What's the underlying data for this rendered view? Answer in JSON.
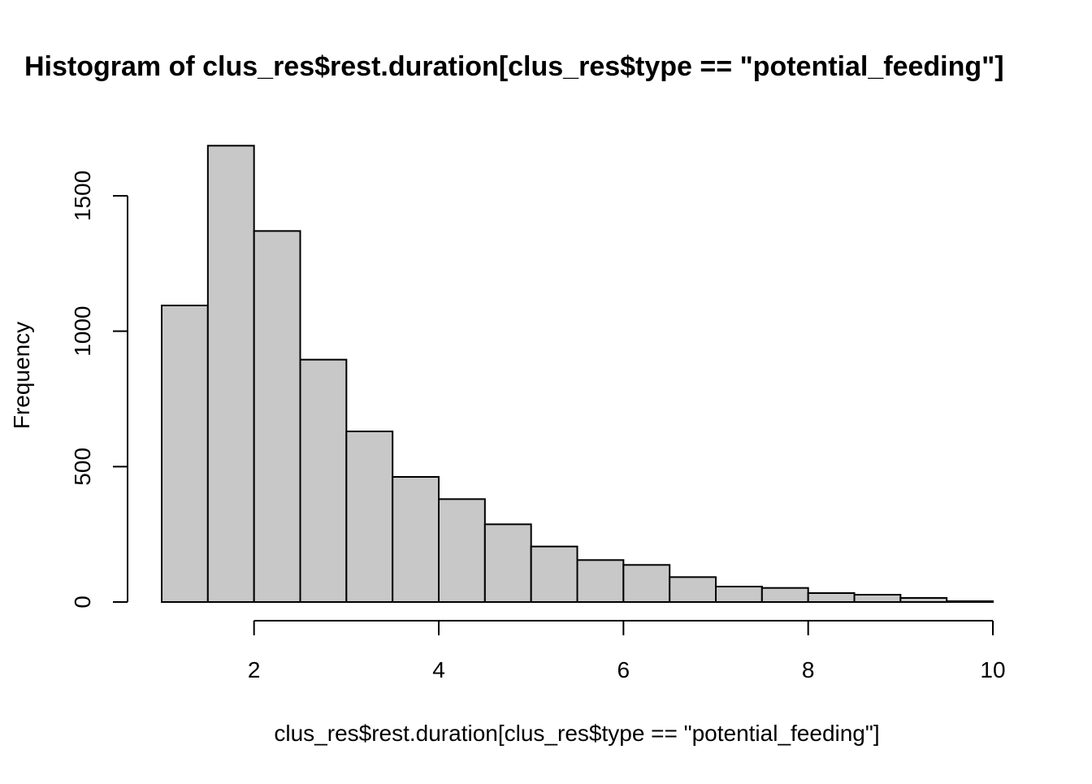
{
  "chart_data": {
    "type": "bar",
    "subtype": "histogram",
    "title": "Histogram of clus_res$rest.duration[clus_res$type == \"potential_feeding\"]",
    "xlabel": "clus_res$rest.duration[clus_res$type == \"potential_feeding\"]",
    "ylabel": "Frequency",
    "bin_edges": [
      1,
      1.5,
      2,
      2.5,
      3,
      3.5,
      4,
      4.5,
      5,
      5.5,
      6,
      6.5,
      7,
      7.5,
      8,
      8.5,
      9,
      9.5,
      10
    ],
    "values": [
      1095,
      1685,
      1370,
      895,
      630,
      462,
      380,
      287,
      205,
      155,
      137,
      92,
      57,
      52,
      33,
      27,
      15,
      3
    ],
    "xticks": [
      2,
      4,
      6,
      8,
      10
    ],
    "xtick_labels": [
      "2",
      "4",
      "6",
      "8",
      "10"
    ],
    "yticks": [
      0,
      500,
      1000,
      1500
    ],
    "ytick_labels": [
      "0",
      "500",
      "1000",
      "1500"
    ],
    "xlim": [
      0.63,
      10.5
    ],
    "ylim": [
      0,
      1685
    ],
    "bar_color": "#c8c8c8",
    "edge_color": "#000000",
    "grid": false,
    "legend": "none"
  }
}
